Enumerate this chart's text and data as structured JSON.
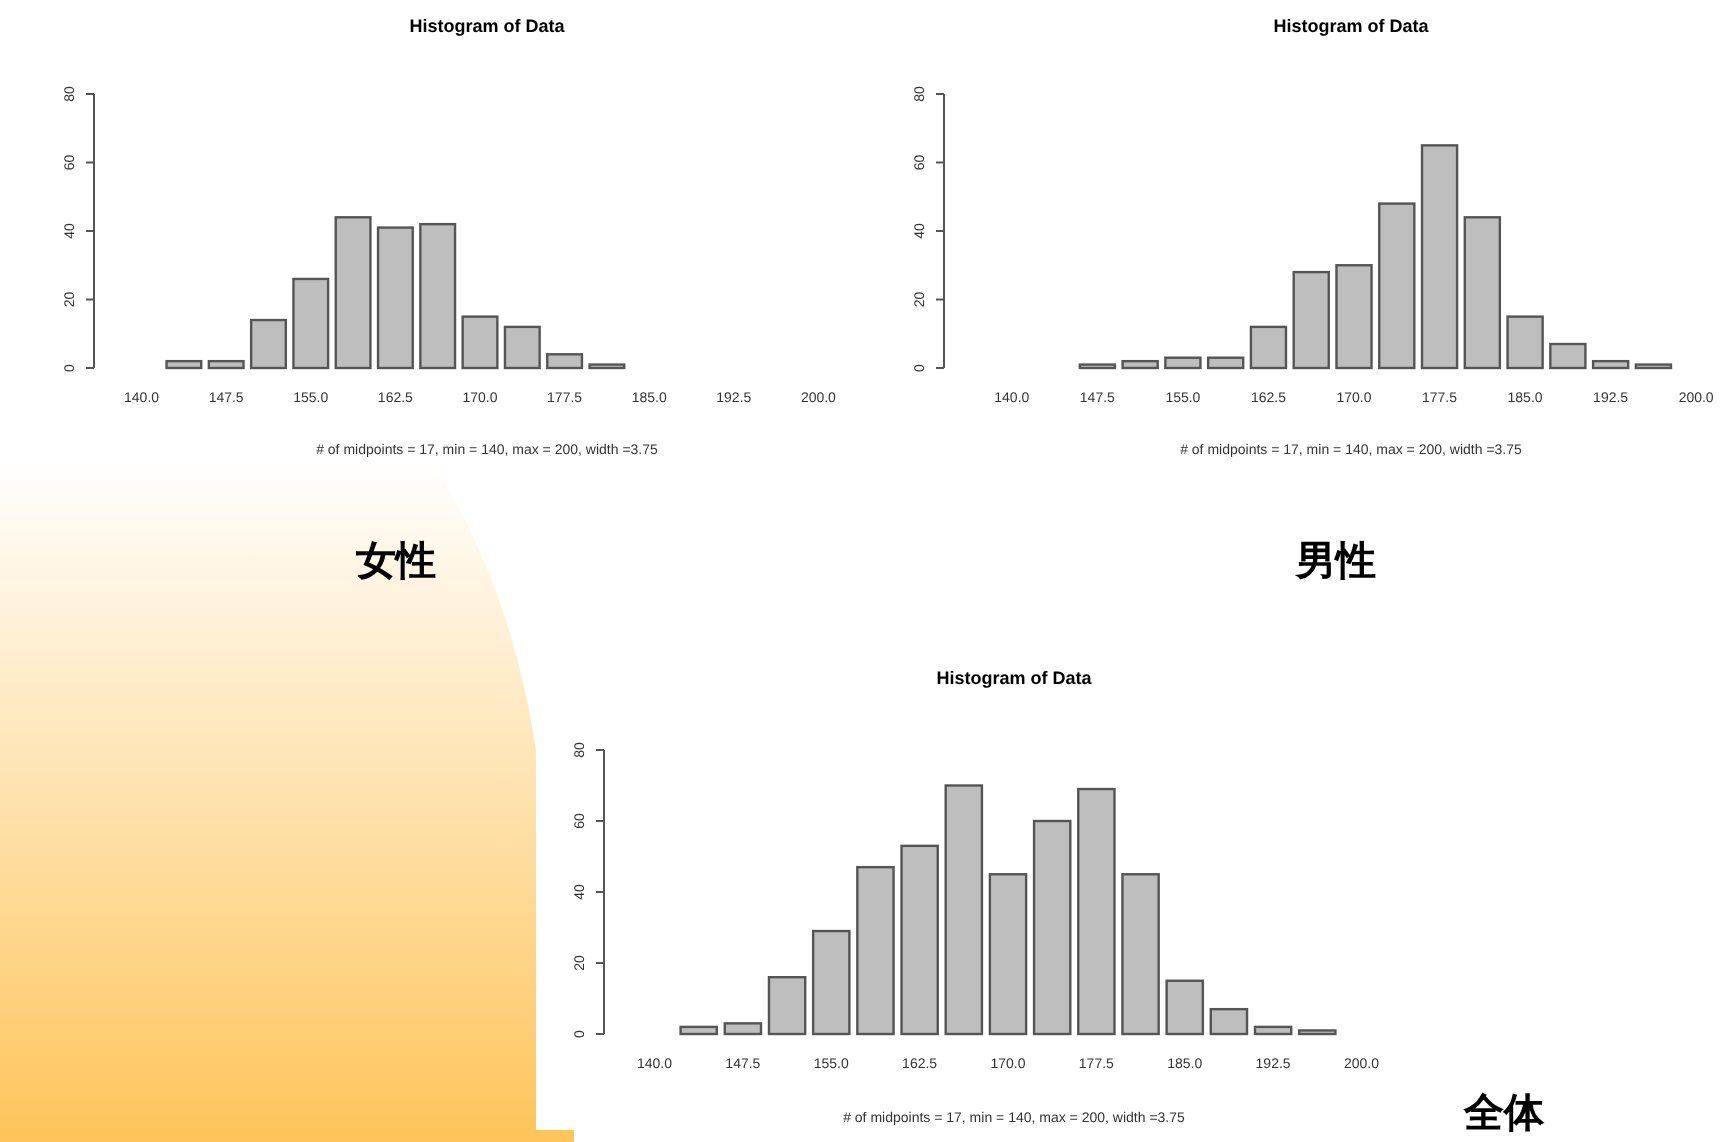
{
  "chart_data": [
    {
      "type": "bar",
      "title": "Histogram of Data",
      "xlabel": "# of midpoints = 17,  min = 140,   max = 200,   width =3.75",
      "annotations": [
        "女性"
      ],
      "categories": [
        "140.0",
        null,
        "147.5",
        null,
        "155.0",
        null,
        "162.5",
        null,
        "170.0",
        null,
        "177.5",
        null,
        "185.0",
        null,
        "192.5",
        null,
        "200.0"
      ],
      "values": [
        0,
        2,
        2,
        14,
        26,
        44,
        41,
        42,
        15,
        12,
        4,
        1,
        0,
        0,
        0,
        0,
        0
      ],
      "color": "#bebebe",
      "ylim": [
        0,
        80
      ],
      "yticks": [
        0,
        20,
        40,
        60,
        80
      ],
      "grid": false
    },
    {
      "type": "bar",
      "title": "Histogram of Data",
      "xlabel": "# of midpoints = 17,  min = 140,   max = 200,   width =3.75",
      "annotations": [
        "男性"
      ],
      "categories": [
        "140.0",
        null,
        "147.5",
        null,
        "155.0",
        null,
        "162.5",
        null,
        "170.0",
        null,
        "177.5",
        null,
        "185.0",
        null,
        "192.5",
        null,
        "200.0"
      ],
      "values": [
        0,
        0,
        1,
        2,
        3,
        3,
        12,
        28,
        30,
        48,
        65,
        44,
        15,
        7,
        2,
        1,
        0
      ],
      "color": "#bebebe",
      "ylim": [
        0,
        80
      ],
      "yticks": [
        0,
        20,
        40,
        60,
        80
      ],
      "grid": false
    },
    {
      "type": "bar",
      "title": "Histogram of Data",
      "xlabel": "# of midpoints = 17,  min = 140,   max = 200,   width =3.75",
      "annotations": [
        "全体"
      ],
      "categories": [
        "140.0",
        null,
        "147.5",
        null,
        "155.0",
        null,
        "162.5",
        null,
        "170.0",
        null,
        "177.5",
        null,
        "185.0",
        null,
        "192.5",
        null,
        "200.0"
      ],
      "values": [
        0,
        2,
        3,
        16,
        29,
        47,
        53,
        70,
        45,
        60,
        69,
        45,
        15,
        7,
        2,
        1,
        0
      ],
      "color": "#bebebe",
      "ylim": [
        0,
        80
      ],
      "yticks": [
        0,
        20,
        40,
        60,
        80
      ],
      "grid": false
    }
  ]
}
